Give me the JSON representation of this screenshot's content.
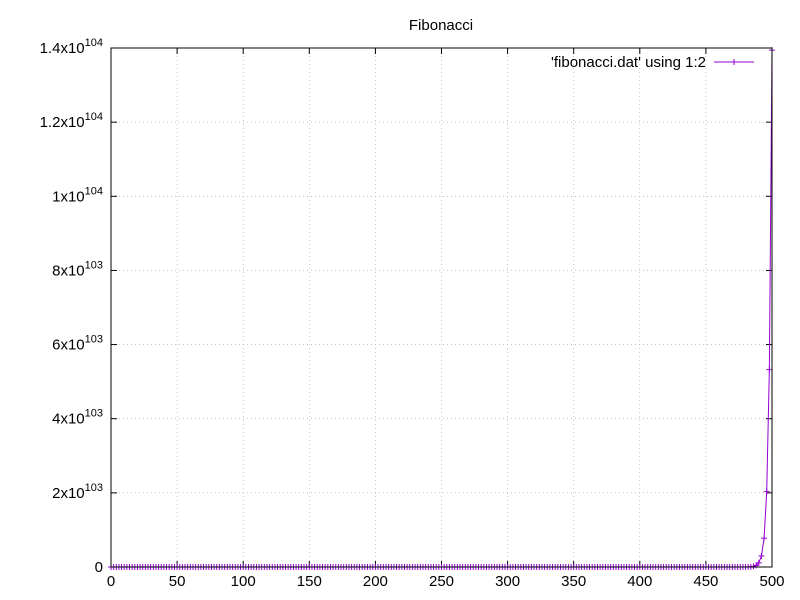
{
  "chart_data": {
    "type": "line",
    "title": "Fibonacci",
    "xlabel": "",
    "ylabel": "",
    "xlim": [
      0,
      500
    ],
    "ylim": [
      0,
      1.4e+104
    ],
    "grid": true,
    "legend_position": "top-right",
    "x_ticks": [
      {
        "value": 0,
        "label": "0"
      },
      {
        "value": 50,
        "label": "50"
      },
      {
        "value": 100,
        "label": "100"
      },
      {
        "value": 150,
        "label": "150"
      },
      {
        "value": 200,
        "label": "200"
      },
      {
        "value": 250,
        "label": "250"
      },
      {
        "value": 300,
        "label": "300"
      },
      {
        "value": 350,
        "label": "350"
      },
      {
        "value": 400,
        "label": "400"
      },
      {
        "value": 450,
        "label": "450"
      },
      {
        "value": 500,
        "label": "500"
      }
    ],
    "y_ticks": [
      {
        "value": 0,
        "mantissa": "0",
        "exponent": ""
      },
      {
        "value": 2e+103,
        "mantissa": "2x10",
        "exponent": "103"
      },
      {
        "value": 4e+103,
        "mantissa": "4x10",
        "exponent": "103"
      },
      {
        "value": 6e+103,
        "mantissa": "6x10",
        "exponent": "103"
      },
      {
        "value": 8e+103,
        "mantissa": "8x10",
        "exponent": "103"
      },
      {
        "value": 1e+104,
        "mantissa": "1x10",
        "exponent": "104"
      },
      {
        "value": 1.2e+104,
        "mantissa": "1.2x10",
        "exponent": "104"
      },
      {
        "value": 1.4e+104,
        "mantissa": "1.4x10",
        "exponent": "104"
      }
    ],
    "series": [
      {
        "name": "'fibonacci.dat' using 1:2",
        "color": "#9400d3",
        "marker": "plus",
        "x_start": 0,
        "x_end": 500,
        "x_step": 2,
        "rule": "fibonacci"
      }
    ]
  }
}
